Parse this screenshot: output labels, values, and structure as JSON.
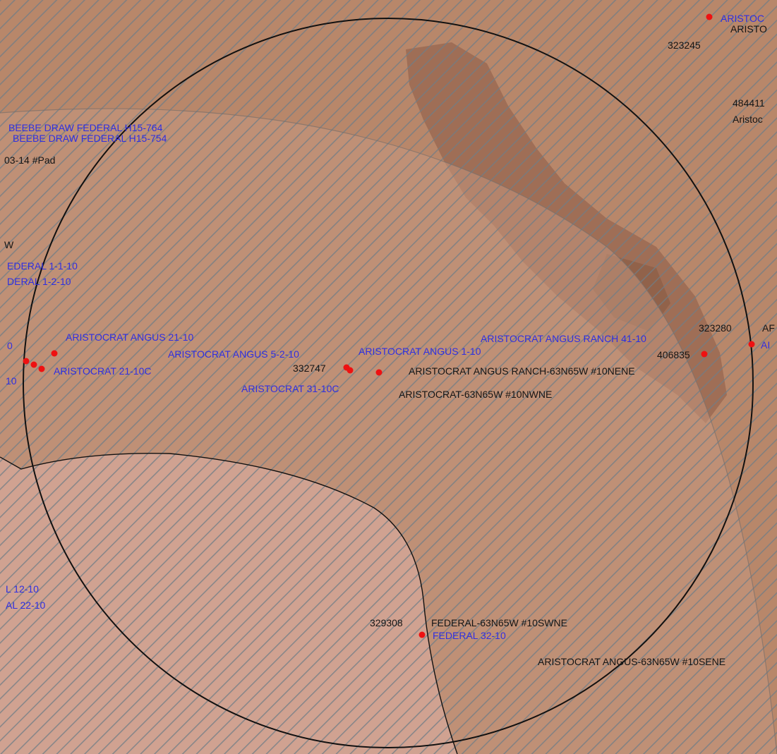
{
  "colors": {
    "land": "#b8876a",
    "dark_land": "#9a6a52",
    "lower_left_zone": "#d0a291",
    "hatch": "#6f7d86",
    "boundary": "#111111",
    "well_dot": "#ee1111",
    "label_blue": "#2f2fe0",
    "label_black": "#151515"
  },
  "labels": {
    "beebe_764": "BEEBE DRAW FEDERAL H15-764",
    "beebe_754": "BEEBE DRAW FEDERAL H15-754",
    "pad_03_14": "03-14  #Pad",
    "w_partial": "W",
    "federal_1_1_10": "EDERAL 1-1-10",
    "federal_1_2_10": "DERAL 1-2-10",
    "zero_partial": "0",
    "ten_partial": "10",
    "angus_21_10": "ARISTOCRAT ANGUS 21-10",
    "aristocrat_21_10c": "ARISTOCRAT 21-10C",
    "angus_5_2_10": "ARISTOCRAT ANGUS 5-2-10",
    "angus_1_10": "ARISTOCRAT ANGUS 1-10",
    "angus_ranch_41_10": "ARISTOCRAT ANGUS RANCH 41-10",
    "id_332747": "332747",
    "aristocrat_31_10c": "ARISTOCRAT 31-10C",
    "angus_ranch_63n65w_10nene": "ARISTOCRAT ANGUS RANCH-63N65W  #10NENE",
    "aristocrat_63n65w_10nwne": "ARISTOCRAT-63N65W  #10NWNE",
    "id_406835": "406835",
    "id_323280": "323280",
    "ar_partial": "AF",
    "a_partial": "AI",
    "aristoc_top_blue": "ARISTOC",
    "aristo_top_black": "ARISTO",
    "id_323245": "323245",
    "id_484411": "484411",
    "aristoc_right": "Aristoc",
    "federal_12_10": "L 12-10",
    "federal_22_10": "AL 22-10",
    "id_329308": "329308",
    "federal_63n65w_10swne": "FEDERAL-63N65W  #10SWNE",
    "federal_32_10": "FEDERAL 32-10",
    "angus_63n65w_10sene": "ARISTOCRAT ANGUS-63N65W  #10SENE"
  }
}
